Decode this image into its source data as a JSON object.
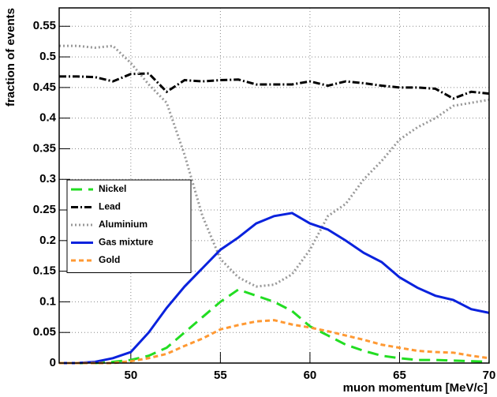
{
  "chart_data": {
    "type": "line",
    "xlabel": "muon momentum [MeV/c]",
    "ylabel": "fraction of events",
    "x": [
      46,
      47,
      48,
      49,
      50,
      51,
      52,
      53,
      54,
      55,
      56,
      57,
      58,
      59,
      60,
      61,
      62,
      63,
      64,
      65,
      66,
      67,
      68,
      69,
      70
    ],
    "series": [
      {
        "name": "Nickel",
        "color": "#22dd22",
        "dash": "14 8",
        "values": [
          0,
          0,
          0,
          0.002,
          0.005,
          0.012,
          0.025,
          0.05,
          0.075,
          0.1,
          0.12,
          0.11,
          0.1,
          0.085,
          0.06,
          0.045,
          0.03,
          0.02,
          0.012,
          0.008,
          0.005,
          0.005,
          0.004,
          0.003,
          0.002
        ]
      },
      {
        "name": "Lead",
        "color": "#000000",
        "dash": "9 3 2 3",
        "values": [
          0.468,
          0.468,
          0.467,
          0.46,
          0.472,
          0.473,
          0.443,
          0.462,
          0.46,
          0.462,
          0.463,
          0.455,
          0.455,
          0.455,
          0.46,
          0.453,
          0.46,
          0.457,
          0.453,
          0.45,
          0.45,
          0.448,
          0.432,
          0.443,
          0.44
        ]
      },
      {
        "name": "Aluminium",
        "color": "#999999",
        "dash": "2 3",
        "values": [
          0.518,
          0.518,
          0.515,
          0.518,
          0.49,
          0.455,
          0.425,
          0.34,
          0.24,
          0.17,
          0.14,
          0.125,
          0.128,
          0.145,
          0.185,
          0.24,
          0.26,
          0.3,
          0.33,
          0.365,
          0.385,
          0.4,
          0.42,
          0.425,
          0.43
        ]
      },
      {
        "name": "Gas mixture",
        "color": "#0a22dd",
        "dash": "none",
        "values": [
          0,
          0,
          0.002,
          0.008,
          0.018,
          0.05,
          0.09,
          0.125,
          0.155,
          0.185,
          0.205,
          0.228,
          0.24,
          0.245,
          0.228,
          0.218,
          0.2,
          0.18,
          0.165,
          0.14,
          0.123,
          0.11,
          0.103,
          0.088,
          0.082
        ]
      },
      {
        "name": "Gold",
        "color": "#ff9933",
        "dash": "6 4",
        "values": [
          0,
          0,
          0,
          0,
          0.003,
          0.008,
          0.015,
          0.028,
          0.04,
          0.055,
          0.062,
          0.068,
          0.07,
          0.063,
          0.058,
          0.052,
          0.045,
          0.038,
          0.03,
          0.025,
          0.02,
          0.018,
          0.017,
          0.012,
          0.008
        ]
      }
    ],
    "xlim": [
      46,
      70
    ],
    "xticks": [
      50,
      55,
      60,
      65,
      70
    ],
    "ylim": [
      0,
      0.58
    ],
    "yticks": [
      0,
      0.05,
      0.1,
      0.15,
      0.2,
      0.25,
      0.3,
      0.35,
      0.4,
      0.45,
      0.5,
      0.55
    ],
    "grid": true,
    "legend": "left"
  }
}
